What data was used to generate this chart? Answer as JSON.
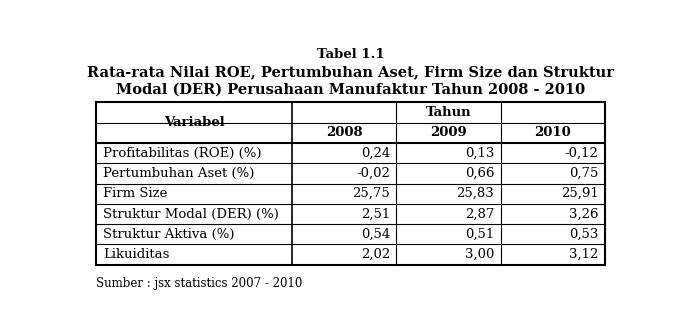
{
  "title_line1": "Tabel 1.1",
  "title_line2": "Rata-rata Nilai ROE, Pertumbuhan Aset, Firm Size dan Struktur",
  "title_line3": "Modal (DER) Perusahaan Manufaktur Tahun 2008 - 2010",
  "header_col": "Variabel",
  "header_group": "Tahun",
  "years": [
    "2008",
    "2009",
    "2010"
  ],
  "rows": [
    [
      "Profitabilitas (ROE) (%)",
      "0,24",
      "0,13",
      "-0,12"
    ],
    [
      "Pertumbuhan Aset (%)",
      "-0,02",
      "0,66",
      "0,75"
    ],
    [
      "Firm Size",
      "25,75",
      "25,83",
      "25,91"
    ],
    [
      "Struktur Modal (DER) (%)",
      "2,51",
      "2,87",
      "3,26"
    ],
    [
      "Struktur Aktiva (%)",
      "0,54",
      "0,51",
      "0,53"
    ],
    [
      "Likuiditas",
      "2,02",
      "3,00",
      "3,12"
    ]
  ],
  "source": "Sumber : jsx statistics 2007 - 2010",
  "bg_color": "#ffffff",
  "text_color": "#000000",
  "border_color": "#000000",
  "title1_fontsize": 9.5,
  "title2_fontsize": 10.5,
  "cell_fontsize": 9.5,
  "source_fontsize": 8.5
}
